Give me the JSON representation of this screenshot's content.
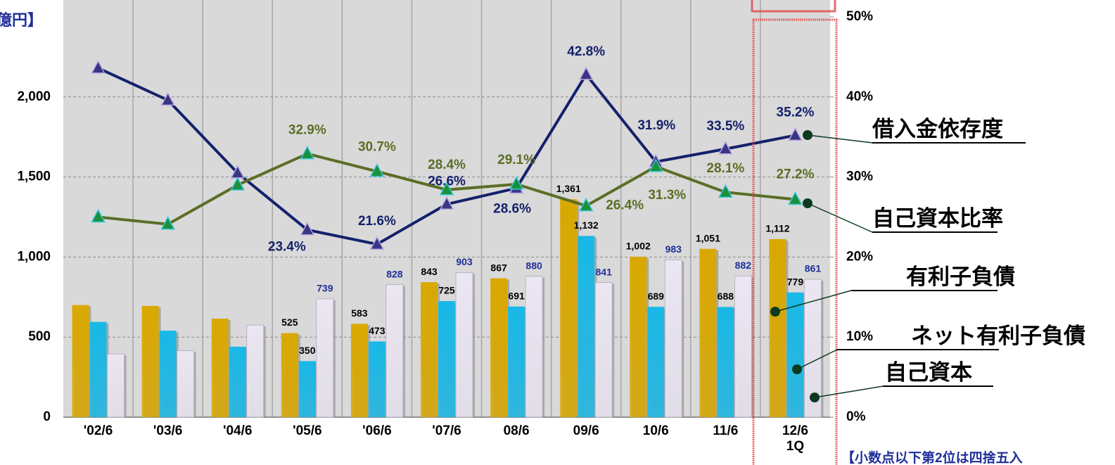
{
  "chart_data": {
    "type": "bar_line",
    "y_axis_label": "億円】",
    "note": "【小数点以下第2位は四捨五入",
    "categories": [
      "'02/6",
      "'03/6",
      "'04/6",
      "'05/6",
      "'06/6",
      "'07/6",
      "08/6",
      "09/6",
      "10/6",
      "11/6",
      "12/6\n1Q"
    ],
    "ylim": [
      0,
      2500
    ],
    "yticks": [
      0,
      500,
      {
        "value": 1000,
        "label": "1,000"
      },
      {
        "value": 1500,
        "label": "1,500"
      },
      {
        "value": 2000,
        "label": "2,000"
      }
    ],
    "y2lim": [
      0,
      50
    ],
    "y2ticks": [
      {
        "value": 0,
        "label": "0%"
      },
      {
        "value": 10,
        "label": "10%"
      },
      {
        "value": 20,
        "label": "20%"
      },
      {
        "value": 30,
        "label": "30%"
      },
      {
        "value": 40,
        "label": "40%"
      },
      {
        "value": 50,
        "label": "50%"
      }
    ],
    "grid": true,
    "series": [
      {
        "name": "有利子負債",
        "kind": "bar",
        "color": "#d9a800",
        "values": [
          700,
          695,
          615,
          525,
          583,
          843,
          867,
          1361,
          1002,
          1051,
          1112
        ],
        "value_labels": [
          null,
          null,
          null,
          "525",
          "583",
          "843",
          "867",
          "1,361",
          "1,002",
          "1,051",
          "1,112"
        ]
      },
      {
        "name": "ネット有利子負債",
        "kind": "bar",
        "color": "#19b8e6",
        "values": [
          595,
          540,
          440,
          350,
          473,
          725,
          691,
          1132,
          689,
          688,
          779
        ],
        "value_labels": [
          null,
          null,
          null,
          "350",
          "473",
          "725",
          "691",
          "1,132",
          "689",
          "688",
          "779"
        ]
      },
      {
        "name": "自己資本",
        "kind": "bar",
        "color": "#ebe6f2",
        "values": [
          395,
          415,
          575,
          739,
          828,
          903,
          880,
          841,
          983,
          882,
          861
        ],
        "value_labels": [
          null,
          null,
          null,
          "739",
          "828",
          "903",
          "880",
          "841",
          "983",
          "882",
          "861"
        ]
      },
      {
        "name": "借入金依存度",
        "kind": "line",
        "axis": "y2",
        "color": "#14216b",
        "values": [
          43.6,
          39.6,
          30.5,
          23.4,
          21.6,
          26.6,
          28.6,
          42.8,
          31.9,
          33.5,
          35.2
        ],
        "value_labels": [
          null,
          null,
          null,
          "23.4%",
          "21.6%",
          "26.6%",
          "28.6%",
          "42.8%",
          "31.9%",
          "33.5%",
          "35.2%"
        ]
      },
      {
        "name": "自己資本比率",
        "kind": "line",
        "axis": "y2",
        "color": "#5b6e26",
        "values": [
          25.0,
          24.1,
          29.0,
          32.9,
          30.7,
          28.4,
          29.1,
          26.4,
          31.3,
          28.1,
          27.2
        ],
        "value_labels": [
          null,
          null,
          null,
          "32.9%",
          "30.7%",
          "28.4%",
          "29.1%",
          "26.4%",
          "31.3%",
          "28.1%",
          "27.2%"
        ]
      }
    ]
  }
}
